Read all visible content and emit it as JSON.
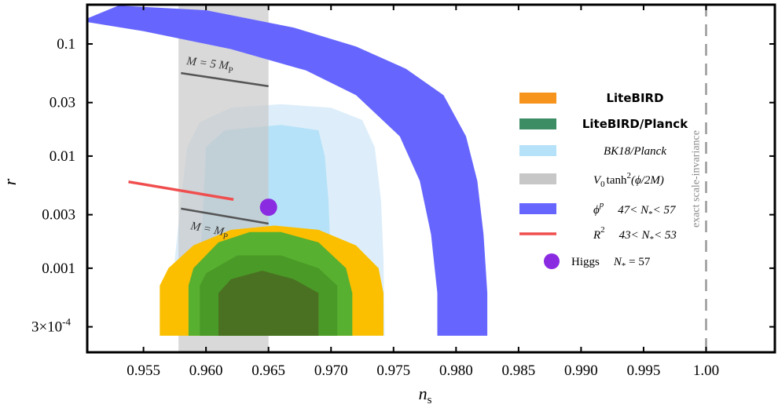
{
  "chart_data": {
    "type": "area",
    "xlabel": "n",
    "xlabel_sub": "s",
    "ylabel": "r",
    "xlim": [
      0.9505,
      1.0055
    ],
    "ylim_log10": [
      -3.75,
      -0.65
    ],
    "x_tick_labels": [
      "0.955",
      "0.960",
      "0.965",
      "0.970",
      "0.975",
      "0.980",
      "0.985",
      "0.990",
      "0.995",
      "1.00"
    ],
    "x_tick_values": [
      0.955,
      0.96,
      0.965,
      0.97,
      0.975,
      0.98,
      0.985,
      0.99,
      0.995,
      1.0
    ],
    "y_tick_labels": [
      "0.1",
      "0.03",
      "0.01",
      "0.003",
      "0.001",
      "3×10",
      "-4"
    ],
    "y_ticks": [
      {
        "value": 0.1,
        "label": "0.1"
      },
      {
        "value": 0.03,
        "label": "0.03"
      },
      {
        "value": 0.01,
        "label": "0.01"
      },
      {
        "value": 0.003,
        "label": "0.003"
      },
      {
        "value": 0.001,
        "label": "0.001"
      },
      {
        "value": 0.0003,
        "label_base": "3×10",
        "label_exp": "-4"
      }
    ],
    "regions": {
      "bk18_planck_95": [
        [
          0.9575,
          0.00025
        ],
        [
          0.9575,
          0.0012
        ],
        [
          0.958,
          0.004
        ],
        [
          0.9585,
          0.012
        ],
        [
          0.9595,
          0.02
        ],
        [
          0.962,
          0.027
        ],
        [
          0.966,
          0.029
        ],
        [
          0.97,
          0.027
        ],
        [
          0.9725,
          0.021
        ],
        [
          0.9735,
          0.012
        ],
        [
          0.974,
          0.004
        ],
        [
          0.9742,
          0.0012
        ],
        [
          0.9743,
          0.00025
        ]
      ],
      "bk18_planck_68": [
        [
          0.9595,
          0.00025
        ],
        [
          0.9595,
          0.001
        ],
        [
          0.9598,
          0.004
        ],
        [
          0.96,
          0.012
        ],
        [
          0.9615,
          0.017
        ],
        [
          0.966,
          0.019
        ],
        [
          0.969,
          0.017
        ],
        [
          0.9695,
          0.01
        ],
        [
          0.9698,
          0.004
        ],
        [
          0.97,
          0.001
        ],
        [
          0.97,
          0.00025
        ]
      ],
      "litebird_95": [
        [
          0.9563,
          0.00025
        ],
        [
          0.9563,
          0.0007
        ],
        [
          0.957,
          0.001
        ],
        [
          0.959,
          0.0016
        ],
        [
          0.962,
          0.0022
        ],
        [
          0.9655,
          0.0024
        ],
        [
          0.969,
          0.0022
        ],
        [
          0.972,
          0.0016
        ],
        [
          0.9738,
          0.001
        ],
        [
          0.9742,
          0.0006
        ],
        [
          0.9742,
          0.00025
        ]
      ],
      "litebird_planck_95": [
        [
          0.9586,
          0.00025
        ],
        [
          0.9586,
          0.0007
        ],
        [
          0.959,
          0.001
        ],
        [
          0.961,
          0.0017
        ],
        [
          0.9635,
          0.0021
        ],
        [
          0.966,
          0.0021
        ],
        [
          0.969,
          0.0017
        ],
        [
          0.9712,
          0.001
        ],
        [
          0.9717,
          0.0006
        ],
        [
          0.9717,
          0.00025
        ]
      ],
      "litebird_planck_68": [
        [
          0.9595,
          0.00025
        ],
        [
          0.9595,
          0.0007
        ],
        [
          0.96,
          0.0009
        ],
        [
          0.9625,
          0.0013
        ],
        [
          0.966,
          0.0013
        ],
        [
          0.969,
          0.001
        ],
        [
          0.9705,
          0.0007
        ],
        [
          0.9705,
          0.00025
        ]
      ],
      "litebird_planck_inner": [
        [
          0.961,
          0.00025
        ],
        [
          0.961,
          0.0006
        ],
        [
          0.962,
          0.0008
        ],
        [
          0.9645,
          0.00095
        ],
        [
          0.967,
          0.0008
        ],
        [
          0.969,
          0.0006
        ],
        [
          0.969,
          0.00025
        ]
      ],
      "tanh_band_x": [
        0.9578,
        0.965
      ],
      "phi_p_upper": [
        [
          0.953,
          0.22
        ],
        [
          0.96,
          0.2
        ],
        [
          0.967,
          0.14
        ],
        [
          0.972,
          0.095
        ],
        [
          0.976,
          0.06
        ],
        [
          0.979,
          0.035
        ],
        [
          0.9808,
          0.015
        ],
        [
          0.9817,
          0.006
        ],
        [
          0.9822,
          0.002
        ],
        [
          0.9825,
          0.0006
        ],
        [
          0.9825,
          0.00025
        ]
      ],
      "phi_p_lower": [
        [
          0.9785,
          0.00025
        ],
        [
          0.9785,
          0.0006
        ],
        [
          0.978,
          0.002
        ],
        [
          0.9771,
          0.006
        ],
        [
          0.9755,
          0.015
        ],
        [
          0.972,
          0.035
        ],
        [
          0.968,
          0.058
        ],
        [
          0.962,
          0.09
        ],
        [
          0.955,
          0.13
        ],
        [
          0.95,
          0.16
        ]
      ]
    },
    "lines": {
      "M5MP": [
        [
          0.958,
          0.055
        ],
        [
          0.965,
          0.042
        ]
      ],
      "MMP": [
        [
          0.958,
          0.0034
        ],
        [
          0.965,
          0.0025
        ]
      ],
      "R2": [
        [
          0.9538,
          0.0059
        ],
        [
          0.9622,
          0.0041
        ]
      ]
    },
    "point_higgs": {
      "x": 0.965,
      "y": 0.0035
    },
    "vline_x": 1.0,
    "annotations": {
      "m5mp": "M = 5 M",
      "m5mp_sub": "P",
      "mmp": "M = M",
      "mmp_sub": "P",
      "vline": "exact scale-invariance"
    },
    "legend": {
      "position": "right",
      "litebird": "LiteBIRD",
      "litebird_planck": "LiteBIRD/Planck",
      "bk18": "BK18/Planck",
      "tanh_pre": "V",
      "tanh_sub": "0",
      "tanh_mid": "tanh",
      "tanh_sup": "2",
      "tanh_post": "(ϕ/2M)",
      "phip_base": "ϕ",
      "phip_sup": "p",
      "phip_range": "47< N",
      "phip_star": "*",
      "phip_end": "< 57",
      "r2_base": "R",
      "r2_sup": "2",
      "r2_range": "43< N",
      "r2_star": "*",
      "r2_end": "< 53",
      "higgs": "Higgs",
      "higgs_n": "N",
      "higgs_star": "*",
      "higgs_end": " = 57"
    },
    "colors": {
      "litebird": "#fbbf00",
      "litebird_planck_95": "#58b030",
      "litebird_planck_68": "#4a9a28",
      "litebird_planck_inner": "#4a6a20",
      "litebird_legend": "#f7941d",
      "litebird_planck_legend": "#3c8c64",
      "bk18_95": "#ddeefa",
      "bk18_68": "#b5e2f8",
      "tanh": "#c7c7c7",
      "phi_p": "#6666ff",
      "r2": "#f04e4e",
      "higgs": "#8a2be2",
      "m_lines": "#555555",
      "vline": "#999999"
    }
  }
}
